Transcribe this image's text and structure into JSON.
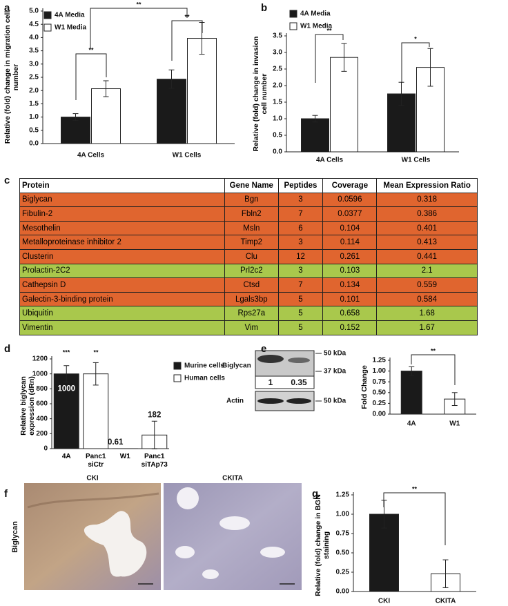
{
  "panel_labels": [
    "a",
    "b",
    "c",
    "d",
    "e",
    "f",
    "g"
  ],
  "chart_data": [
    {
      "type": "bar",
      "ylabel": "Relative (fold) change in migration cell number",
      "categories": [
        "4A Cells",
        "W1 Cells"
      ],
      "series": [
        {
          "name": "4A Media",
          "color": "#1a1a1a",
          "values": [
            1.0,
            2.43
          ],
          "errors": [
            0.13,
            0.35
          ]
        },
        {
          "name": "W1 Media",
          "color": "#ffffff",
          "values": [
            2.07,
            3.97
          ],
          "errors": [
            0.3,
            0.6
          ]
        }
      ],
      "ylim": [
        0,
        5
      ],
      "yticks": [
        {
          "value": 0,
          "label": "0.0"
        },
        0.5,
        {
          "value": 1,
          "label": "1.0"
        },
        1.5,
        {
          "value": 2,
          "label": "2.0"
        },
        2.5,
        {
          "value": 3,
          "label": "3.0"
        },
        3.5,
        {
          "value": 4,
          "label": "4.0"
        },
        4.5,
        {
          "value": 5,
          "label": "5.0"
        }
      ],
      "annotations": [
        "**",
        "**",
        "**"
      ]
    },
    {
      "type": "bar",
      "ylabel": "Relative (fold) change in invasion cell number",
      "categories": [
        "4A Cells",
        "W1 Cells"
      ],
      "series": [
        {
          "name": "4A Media",
          "color": "#1a1a1a",
          "values": [
            1.0,
            1.75
          ],
          "errors": [
            0.1,
            0.35
          ]
        },
        {
          "name": "W1 Media",
          "color": "#ffffff",
          "values": [
            2.85,
            2.55
          ],
          "errors": [
            0.42,
            0.57
          ]
        }
      ],
      "ylim": [
        0,
        3.5
      ],
      "yticks": [
        {
          "value": 0,
          "label": "0.0"
        },
        0.5,
        {
          "value": 1,
          "label": "1.0"
        },
        1.5,
        {
          "value": 2,
          "label": "2.0"
        },
        2.5,
        {
          "value": 3,
          "label": "3.0"
        },
        3.5
      ],
      "annotations": [
        "**",
        "*"
      ]
    },
    {
      "type": "bar",
      "ylabel": "Relative biglycan expression (dRn)",
      "categories": [
        "4A",
        "Panc1 siCtr",
        "W1",
        "Panc1 siTAp73"
      ],
      "series": [
        {
          "name": "Murine cells",
          "color": "#1a1a1a",
          "values": [
            1000,
            null,
            0.61,
            null
          ],
          "errors": [
            110,
            null,
            null,
            null
          ],
          "value_labels": [
            "1000",
            null,
            "0.61",
            null
          ]
        },
        {
          "name": "Human cells",
          "color": "#ffffff",
          "values": [
            null,
            1000,
            null,
            182
          ],
          "errors": [
            null,
            150,
            null,
            185
          ],
          "value_labels": [
            null,
            null,
            null,
            "182"
          ]
        }
      ],
      "ylim": [
        0,
        1200
      ],
      "yticks": [
        0,
        200,
        400,
        600,
        800,
        1000,
        1200
      ],
      "annotations": [
        "***",
        "**"
      ]
    },
    {
      "type": "bar",
      "ylabel": "Fold Change",
      "categories": [
        "4A",
        "W1"
      ],
      "values": [
        1.0,
        0.35
      ],
      "errors": [
        0.1,
        0.15
      ],
      "colors": [
        "#1a1a1a",
        "#ffffff"
      ],
      "ylim": [
        0,
        1.25
      ],
      "yticks": [
        {
          "value": 0,
          "label": "0.00"
        },
        0.25,
        {
          "value": 0.5,
          "label": "0.50"
        },
        0.75,
        {
          "value": 1,
          "label": "1.00"
        },
        1.25
      ],
      "annotations": [
        "**"
      ]
    },
    {
      "type": "bar",
      "ylabel": "Relative (fold) change in BGN staining",
      "categories": [
        "CKI",
        "CKITA"
      ],
      "values": [
        1.0,
        0.23
      ],
      "errors": [
        0.18,
        0.18
      ],
      "colors": [
        "#1a1a1a",
        "#ffffff"
      ],
      "ylim": [
        0,
        1.25
      ],
      "yticks": [
        {
          "value": 0,
          "label": "0.00"
        },
        0.25,
        {
          "value": 0.5,
          "label": "0.50"
        },
        0.75,
        {
          "value": 1,
          "label": "1.00"
        },
        1.25
      ],
      "annotations": [
        "**"
      ]
    }
  ],
  "table": {
    "columns": [
      "Protein",
      "Gene Name",
      "Peptides",
      "Coverage",
      "Mean Expression Ratio"
    ],
    "rows": [
      [
        "Biglycan",
        "Bgn",
        "3",
        "0.0596",
        "0.318"
      ],
      [
        "Fibulin-2",
        "Fbln2",
        "7",
        "0.0377",
        "0.386"
      ],
      [
        "Mesothelin",
        "Msln",
        "6",
        "0.104",
        "0.401"
      ],
      [
        "Metalloproteinase inhibitor 2",
        "Timp2",
        "3",
        "0.114",
        "0.413"
      ],
      [
        "Clusterin",
        "Clu",
        "12",
        "0.261",
        "0.441"
      ],
      [
        "Prolactin-2C2",
        "Prl2c2",
        "3",
        "0.103",
        "2.1"
      ],
      [
        "Cathepsin D",
        "Ctsd",
        "7",
        "0.134",
        "0.559"
      ],
      [
        "Galectin-3-binding protein",
        "Lgals3bp",
        "5",
        "0.101",
        "0.584"
      ],
      [
        "Ubiquitin",
        "Rps27a",
        "5",
        "0.658",
        "1.68"
      ],
      [
        "Vimentin",
        "Vim",
        "5",
        "0.152",
        "1.67"
      ]
    ],
    "row_colors": [
      "#e0652f",
      "#e0652f",
      "#e0652f",
      "#e0652f",
      "#e0652f",
      "#a9c84c",
      "#e0652f",
      "#e0652f",
      "#a9c84c",
      "#a9c84c"
    ]
  },
  "blot": {
    "label": "Biglycan",
    "control": "Actin",
    "markers": [
      "50 kDa",
      "37 kDa",
      "50 kDa"
    ],
    "quant": [
      "1",
      "0.35"
    ]
  },
  "histology": {
    "titles": [
      "CKI",
      "CKITA"
    ],
    "stain": "Biglycan"
  }
}
